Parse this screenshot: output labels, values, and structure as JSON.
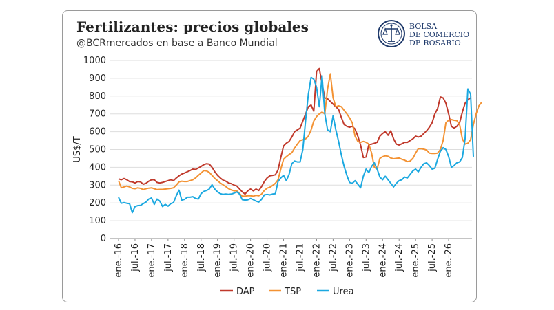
{
  "header": {
    "title": "Fertilizantes: precios globales",
    "subtitle": "@BCRmercados en base a Banco Mundial"
  },
  "logo": {
    "lines": [
      "BOLSA",
      "DE COMERCIO",
      "DE ROSARIO"
    ],
    "color": "#1f3a6b"
  },
  "chart_data": {
    "type": "line",
    "ylabel": "US$/T",
    "ylim": [
      0,
      1000
    ],
    "y_ticks": [
      0,
      100,
      200,
      300,
      400,
      500,
      600,
      700,
      800,
      900,
      1000
    ],
    "x_start": "2016-01",
    "x_labels": [
      "ene.-16",
      "jul.-16",
      "ene.-17",
      "jul.-17",
      "ene.-18",
      "jul.-18",
      "ene.-19",
      "jul.-19",
      "ene.-20",
      "jul.-20",
      "ene.-21",
      "jul.-21",
      "ene.-22",
      "jul.-22",
      "ene.-23",
      "jul.-23",
      "ene.-24",
      "jul.-24",
      "ene.-25",
      "jul.-25",
      "ene.-26"
    ],
    "grid": true,
    "legend_position": "bottom",
    "series": [
      {
        "name": "DAP",
        "color": "#c0392b",
        "values": [
          335,
          330,
          337,
          330,
          320,
          318,
          312,
          320,
          318,
          305,
          310,
          322,
          330,
          330,
          315,
          312,
          315,
          320,
          325,
          330,
          325,
          340,
          352,
          362,
          368,
          375,
          382,
          390,
          388,
          396,
          405,
          415,
          420,
          418,
          400,
          375,
          355,
          340,
          328,
          322,
          312,
          308,
          300,
          295,
          278,
          262,
          250,
          268,
          278,
          268,
          278,
          270,
          292,
          320,
          340,
          352,
          355,
          358,
          385,
          455,
          520,
          535,
          545,
          570,
          600,
          610,
          620,
          660,
          700,
          740,
          750,
          715,
          938,
          955,
          870,
          790,
          785,
          770,
          755,
          740,
          725,
          680,
          640,
          630,
          625,
          630,
          615,
          575,
          525,
          455,
          458,
          528,
          530,
          535,
          540,
          575,
          590,
          600,
          580,
          605,
          560,
          530,
          525,
          532,
          540,
          540,
          550,
          560,
          575,
          570,
          575,
          590,
          605,
          625,
          650,
          700,
          730,
          795,
          790,
          760,
          700,
          630,
          620,
          630,
          650,
          710,
          760,
          780,
          790
        ]
      },
      {
        "name": "TSP",
        "color": "#f39233",
        "values": [
          325,
          285,
          290,
          295,
          290,
          282,
          280,
          285,
          282,
          275,
          280,
          283,
          285,
          280,
          275,
          276,
          276,
          278,
          280,
          282,
          285,
          300,
          318,
          322,
          320,
          320,
          325,
          330,
          340,
          355,
          368,
          382,
          380,
          372,
          355,
          338,
          325,
          312,
          302,
          292,
          280,
          273,
          268,
          268,
          252,
          238,
          238,
          240,
          240,
          238,
          243,
          240,
          250,
          270,
          283,
          288,
          298,
          310,
          330,
          390,
          445,
          460,
          472,
          482,
          508,
          530,
          550,
          555,
          560,
          575,
          610,
          660,
          685,
          700,
          710,
          700,
          840,
          925,
          790,
          740,
          745,
          740,
          720,
          700,
          678,
          650,
          575,
          545,
          540,
          545,
          540,
          530,
          480,
          400,
          390,
          450,
          460,
          465,
          462,
          452,
          448,
          450,
          452,
          445,
          440,
          432,
          435,
          450,
          480,
          505,
          505,
          502,
          497,
          480,
          478,
          478,
          480,
          500,
          550,
          650,
          665,
          668,
          664,
          662,
          640,
          560,
          530,
          535,
          555,
          640,
          700,
          745,
          765
        ]
      },
      {
        "name": "Urea",
        "color": "#1ba8e0",
        "values": [
          232,
          198,
          202,
          198,
          196,
          145,
          180,
          185,
          186,
          196,
          205,
          222,
          228,
          192,
          222,
          210,
          180,
          192,
          182,
          196,
          202,
          240,
          272,
          216,
          220,
          232,
          232,
          235,
          225,
          222,
          252,
          265,
          270,
          278,
          302,
          278,
          262,
          252,
          248,
          250,
          248,
          250,
          255,
          262,
          250,
          218,
          216,
          217,
          225,
          218,
          210,
          205,
          220,
          245,
          248,
          245,
          250,
          252,
          320,
          340,
          355,
          325,
          360,
          420,
          435,
          430,
          430,
          500,
          662,
          810,
          905,
          895,
          850,
          740,
          915,
          700,
          610,
          600,
          690,
          610,
          545,
          470,
          405,
          355,
          315,
          310,
          325,
          305,
          285,
          350,
          390,
          370,
          405,
          425,
          390,
          345,
          330,
          350,
          330,
          310,
          290,
          310,
          325,
          330,
          345,
          340,
          360,
          380,
          390,
          375,
          400,
          420,
          425,
          410,
          390,
          395,
          445,
          490,
          510,
          500,
          460,
          400,
          410,
          425,
          430,
          455,
          560,
          840,
          810,
          460
        ]
      }
    ]
  }
}
